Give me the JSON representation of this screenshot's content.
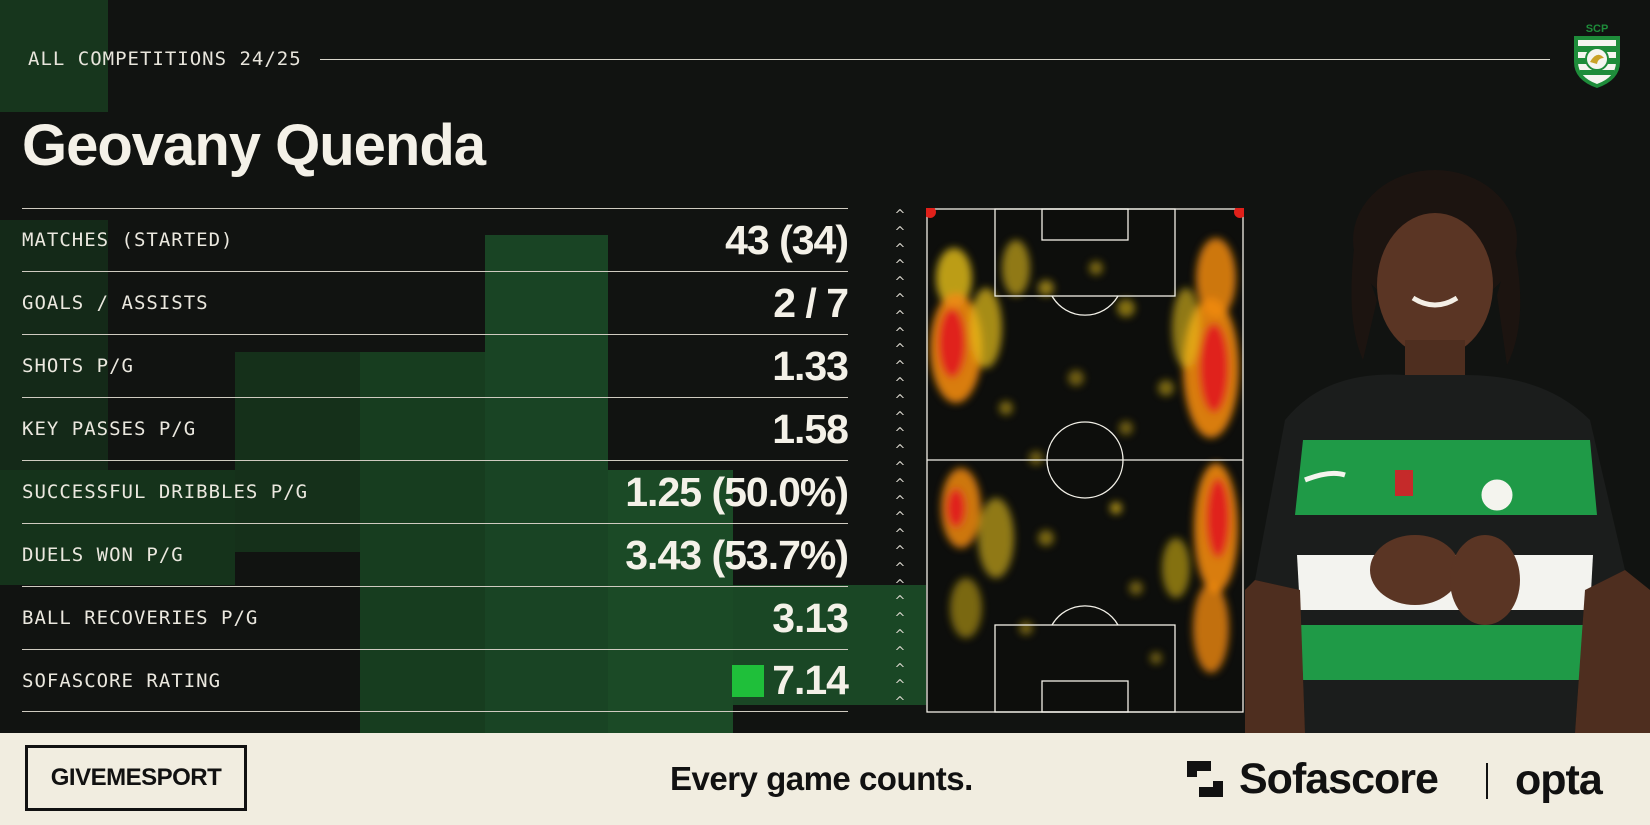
{
  "header": {
    "competition": "ALL COMPETITIONS 24/25",
    "club_crest_icon": "sporting-cp-crest-icon"
  },
  "player": {
    "name": "Geovany Quenda"
  },
  "stats": [
    {
      "label": "MATCHES (STARTED)",
      "value": "43 (34)"
    },
    {
      "label": "GOALS / ASSISTS",
      "value": "2 / 7"
    },
    {
      "label": "SHOTS P/G",
      "value": "1.33"
    },
    {
      "label": "KEY PASSES P/G",
      "value": "1.58"
    },
    {
      "label": "SUCCESSFUL DRIBBLES P/G",
      "value": "1.25 (50.0%)"
    },
    {
      "label": "DUELS WON P/G",
      "value": "3.43 (53.7%)"
    },
    {
      "label": "BALL RECOVERIES P/G",
      "value": "3.13"
    },
    {
      "label": "SOFASCORE RATING",
      "value": "7.14"
    }
  ],
  "rating_color": "#1fbf3a",
  "footer": {
    "publisher": "GIVEMESPORT",
    "tagline": "Every game counts.",
    "brand": "Sofascore",
    "partner": "opta"
  },
  "colors": {
    "background": "#111311",
    "accent_green": "#1f5a2a",
    "footer_bg": "#f1ede0"
  }
}
